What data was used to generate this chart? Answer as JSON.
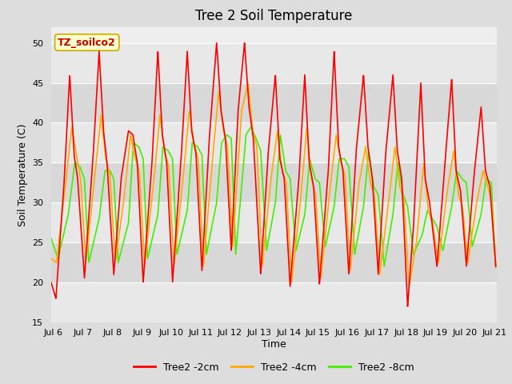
{
  "title": "Tree 2 Soil Temperature",
  "xlabel": "Time",
  "ylabel": "Soil Temperature (C)",
  "ylim": [
    15,
    52
  ],
  "yticks": [
    15,
    20,
    25,
    30,
    35,
    40,
    45,
    50
  ],
  "legend_label": "TZ_soilco2",
  "legend_box_facecolor": "#ffffcc",
  "legend_box_edgecolor": "#ccaa00",
  "series": [
    {
      "label": "Tree2 -2cm",
      "color": "#ff0000",
      "lw": 1.2
    },
    {
      "label": "Tree2 -4cm",
      "color": "#ffaa00",
      "lw": 1.2
    },
    {
      "label": "Tree2 -8cm",
      "color": "#44ee00",
      "lw": 1.2
    }
  ],
  "x_start": 5.92,
  "x_end": 21.08,
  "xtick_positions": [
    6,
    7,
    8,
    9,
    10,
    11,
    12,
    13,
    14,
    15,
    16,
    17,
    18,
    19,
    20,
    21
  ],
  "xtick_labels": [
    "Jul 6",
    "Jul 7",
    "Jul 8",
    "Jul 9",
    "Jul 10",
    "Jul 11",
    "Jul 12",
    "Jul 13",
    "Jul 14",
    "Jul 15",
    "Jul 16",
    "Jul 17",
    "Jul 18",
    "Jul 19",
    "Jul 20",
    "Jul 21"
  ],
  "fig_bg_color": "#dddddd",
  "plot_bg_color": "#eeeeee",
  "grid_color": "#ffffff",
  "band_colors": [
    "#e8e8e8",
    "#d8d8d8"
  ],
  "title_fontsize": 12,
  "axis_fontsize": 9,
  "tick_fontsize": 8
}
